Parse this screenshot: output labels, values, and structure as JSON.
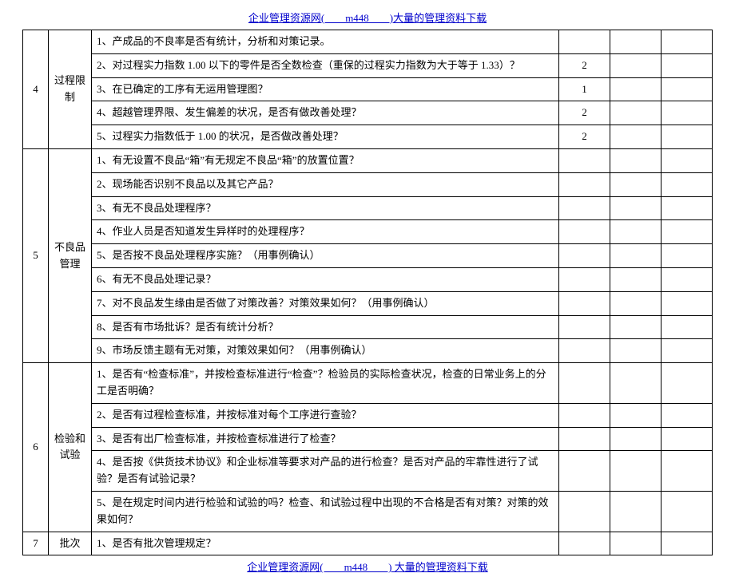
{
  "header": {
    "text": "企业管理资源网(　　m448　　)大量的管理资料下载"
  },
  "footer": {
    "text": "企业管理资源网(　　m448　　) 大量的管理资料下载"
  },
  "sections": [
    {
      "num": "4",
      "category": "过程限制",
      "rows": [
        {
          "desc": "1、产成品的不良率是否有统计，分析和对策记录。",
          "v1": "",
          "v2": "",
          "v3": ""
        },
        {
          "desc": "2、对过程实力指数 1.00 以下的零件是否全数检查（重保的过程实力指数为大于等于 1.33）？",
          "v1": "2",
          "v2": "",
          "v3": ""
        },
        {
          "desc": "3、在已确定的工序有无运用管理图？",
          "v1": "1",
          "v2": "",
          "v3": ""
        },
        {
          "desc": "4、超越管理界限、发生偏差的状况，是否有做改善处理？",
          "v1": "2",
          "v2": "",
          "v3": ""
        },
        {
          "desc": "5、过程实力指数低于 1.00 的状况，是否做改善处理？",
          "v1": "2",
          "v2": "",
          "v3": ""
        }
      ]
    },
    {
      "num": "5",
      "category": "不良品管理",
      "rows": [
        {
          "desc": "1、有无设置不良品“箱”有无规定不良品“箱”的放置位置？",
          "v1": "",
          "v2": "",
          "v3": ""
        },
        {
          "desc": "2、现场能否识别不良品以及其它产品？",
          "v1": "",
          "v2": "",
          "v3": ""
        },
        {
          "desc": "3、有无不良品处理程序？",
          "v1": "",
          "v2": "",
          "v3": ""
        },
        {
          "desc": "4、作业人员是否知道发生异样时的处理程序？",
          "v1": "",
          "v2": "",
          "v3": ""
        },
        {
          "desc": "5、是否按不良品处理程序实施？（用事例确认）",
          "v1": "",
          "v2": "",
          "v3": ""
        },
        {
          "desc": "6、有无不良品处理记录？",
          "v1": "",
          "v2": "",
          "v3": ""
        },
        {
          "desc": "7、对不良品发生缘由是否做了对策改善？对策效果如何？（用事例确认）",
          "v1": "",
          "v2": "",
          "v3": ""
        },
        {
          "desc": "8、是否有市场批诉？是否有统计分析？",
          "v1": "",
          "v2": "",
          "v3": ""
        },
        {
          "desc": "9、市场反馈主题有无对策，对策效果如何？（用事例确认）",
          "v1": "",
          "v2": "",
          "v3": ""
        }
      ]
    },
    {
      "num": "6",
      "category": "检验和试验",
      "rows": [
        {
          "desc": "1、是否有“检查标准”，并按检查标准进行“检查”？检验员的实际检查状况，检查的日常业务上的分工是否明确？",
          "v1": "",
          "v2": "",
          "v3": ""
        },
        {
          "desc": "2、是否有过程检查标准，并按标准对每个工序进行查验？",
          "v1": "",
          "v2": "",
          "v3": ""
        },
        {
          "desc": "3、是否有出厂检查标准，并按检查标准进行了检查？",
          "v1": "",
          "v2": "",
          "v3": ""
        },
        {
          "desc": "4、是否按《供货技术协议》和企业标准等要求对产品的进行检查？是否对产品的牢靠性进行了试验？是否有试验记录？",
          "v1": "",
          "v2": "",
          "v3": ""
        },
        {
          "desc": "5、是在规定时间内进行检验和试验的吗？检查、和试验过程中出现的不合格是否有对策？对策的效果如何？",
          "v1": "",
          "v2": "",
          "v3": ""
        }
      ]
    },
    {
      "num": "7",
      "category": "批次",
      "rows": [
        {
          "desc": "1、是否有批次管理规定？",
          "v1": "",
          "v2": "",
          "v3": ""
        }
      ]
    }
  ]
}
